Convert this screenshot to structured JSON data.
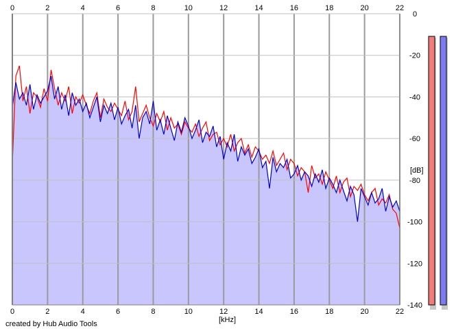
{
  "credit": "created by Hub Audio Tools",
  "chart_data": {
    "type": "area",
    "xlabel": "[kHz]",
    "ylabel": "[dB]",
    "xlim": [
      0,
      22
    ],
    "ylim": [
      -140,
      0
    ],
    "x_ticks": [
      0,
      2,
      4,
      6,
      8,
      10,
      12,
      14,
      16,
      18,
      20,
      22
    ],
    "y_ticks": [
      0,
      -20,
      -40,
      -60,
      -80,
      -100,
      -120,
      -140
    ],
    "grid": true,
    "fill_color": "#c8c6fc",
    "series": [
      {
        "color": "#ff0000",
        "x": [
          0.0,
          0.2,
          0.4,
          0.6,
          0.8,
          1.0,
          1.2,
          1.4,
          1.6,
          1.8,
          2.0,
          2.2,
          2.4,
          2.6,
          2.8,
          3.0,
          3.2,
          3.4,
          3.6,
          3.8,
          4.0,
          4.2,
          4.4,
          4.6,
          4.8,
          5.0,
          5.2,
          5.4,
          5.6,
          5.8,
          6.0,
          6.2,
          6.4,
          6.6,
          6.8,
          7.0,
          7.2,
          7.4,
          7.6,
          7.8,
          8.0,
          8.2,
          8.4,
          8.6,
          8.8,
          9.0,
          9.2,
          9.4,
          9.6,
          9.8,
          10.0,
          10.2,
          10.4,
          10.6,
          10.8,
          11.0,
          11.2,
          11.4,
          11.6,
          11.8,
          12.0,
          12.2,
          12.4,
          12.6,
          12.8,
          13.0,
          13.2,
          13.4,
          13.6,
          13.8,
          14.0,
          14.2,
          14.4,
          14.6,
          14.8,
          15.0,
          15.2,
          15.4,
          15.6,
          15.8,
          16.0,
          16.2,
          16.4,
          16.6,
          16.8,
          17.0,
          17.2,
          17.4,
          17.6,
          17.8,
          18.0,
          18.2,
          18.4,
          18.6,
          18.8,
          19.0,
          19.2,
          19.4,
          19.6,
          19.8,
          20.0,
          20.2,
          20.4,
          20.6,
          20.8,
          21.0,
          21.2,
          21.4,
          21.6,
          21.8,
          22.0
        ],
        "y": [
          -72,
          -30,
          -25,
          -42,
          -35,
          -48,
          -38,
          -40,
          -45,
          -36,
          -42,
          -27,
          -36,
          -44,
          -38,
          -42,
          -35,
          -48,
          -40,
          -43,
          -39,
          -44,
          -48,
          -42,
          -38,
          -50,
          -41,
          -45,
          -47,
          -43,
          -46,
          -49,
          -42,
          -51,
          -47,
          -35,
          -52,
          -48,
          -44,
          -50,
          -54,
          -48,
          -52,
          -47,
          -56,
          -50,
          -55,
          -53,
          -58,
          -52,
          -55,
          -57,
          -53,
          -59,
          -55,
          -52,
          -61,
          -58,
          -57,
          -63,
          -60,
          -64,
          -58,
          -66,
          -62,
          -60,
          -67,
          -63,
          -69,
          -64,
          -66,
          -70,
          -68,
          -72,
          -66,
          -73,
          -70,
          -67,
          -75,
          -70,
          -72,
          -78,
          -74,
          -76,
          -86,
          -73,
          -79,
          -77,
          -82,
          -76,
          -80,
          -84,
          -78,
          -86,
          -81,
          -79,
          -88,
          -83,
          -85,
          -82,
          -87,
          -90,
          -86,
          -84,
          -92,
          -89,
          -91,
          -87,
          -94,
          -96,
          -103
        ]
      },
      {
        "color": "#0000cc",
        "x": [
          0.0,
          0.2,
          0.4,
          0.6,
          0.8,
          1.0,
          1.2,
          1.4,
          1.6,
          1.8,
          2.0,
          2.2,
          2.4,
          2.6,
          2.8,
          3.0,
          3.2,
          3.4,
          3.6,
          3.8,
          4.0,
          4.2,
          4.4,
          4.6,
          4.8,
          5.0,
          5.2,
          5.4,
          5.6,
          5.8,
          6.0,
          6.2,
          6.4,
          6.6,
          6.8,
          7.0,
          7.2,
          7.4,
          7.6,
          7.8,
          8.0,
          8.2,
          8.4,
          8.6,
          8.8,
          9.0,
          9.2,
          9.4,
          9.6,
          9.8,
          10.0,
          10.2,
          10.4,
          10.6,
          10.8,
          11.0,
          11.2,
          11.4,
          11.6,
          11.8,
          12.0,
          12.2,
          12.4,
          12.6,
          12.8,
          13.0,
          13.2,
          13.4,
          13.6,
          13.8,
          14.0,
          14.2,
          14.4,
          14.6,
          14.8,
          15.0,
          15.2,
          15.4,
          15.6,
          15.8,
          16.0,
          16.2,
          16.4,
          16.6,
          16.8,
          17.0,
          17.2,
          17.4,
          17.6,
          17.8,
          18.0,
          18.2,
          18.4,
          18.6,
          18.8,
          19.0,
          19.2,
          19.4,
          19.6,
          19.8,
          20.0,
          20.2,
          20.4,
          20.6,
          20.8,
          21.0,
          21.2,
          21.4,
          21.6,
          21.8,
          22.0
        ],
        "y": [
          -45,
          -33,
          -41,
          -38,
          -44,
          -34,
          -46,
          -39,
          -43,
          -40,
          -37,
          -30,
          -41,
          -35,
          -46,
          -39,
          -49,
          -38,
          -44,
          -41,
          -47,
          -43,
          -50,
          -45,
          -40,
          -52,
          -44,
          -48,
          -43,
          -51,
          -45,
          -53,
          -49,
          -46,
          -55,
          -44,
          -60,
          -50,
          -47,
          -53,
          -42,
          -56,
          -51,
          -58,
          -49,
          -55,
          -61,
          -52,
          -57,
          -50,
          -54,
          -60,
          -56,
          -51,
          -62,
          -57,
          -59,
          -54,
          -64,
          -59,
          -70,
          -62,
          -66,
          -58,
          -71,
          -64,
          -68,
          -65,
          -72,
          -69,
          -65,
          -74,
          -71,
          -84,
          -69,
          -76,
          -72,
          -74,
          -70,
          -79,
          -77,
          -73,
          -80,
          -76,
          -78,
          -83,
          -77,
          -81,
          -75,
          -84,
          -79,
          -82,
          -86,
          -80,
          -85,
          -90,
          -83,
          -87,
          -100,
          -84,
          -88,
          -92,
          -86,
          -91,
          -89,
          -84,
          -95,
          -88,
          -93,
          -90,
          -95
        ]
      }
    ]
  },
  "meters": [
    {
      "channel": "left",
      "level": 0.975,
      "color": "#f07c7c"
    },
    {
      "channel": "right",
      "level": 0.975,
      "color": "#7c7cf0"
    }
  ]
}
